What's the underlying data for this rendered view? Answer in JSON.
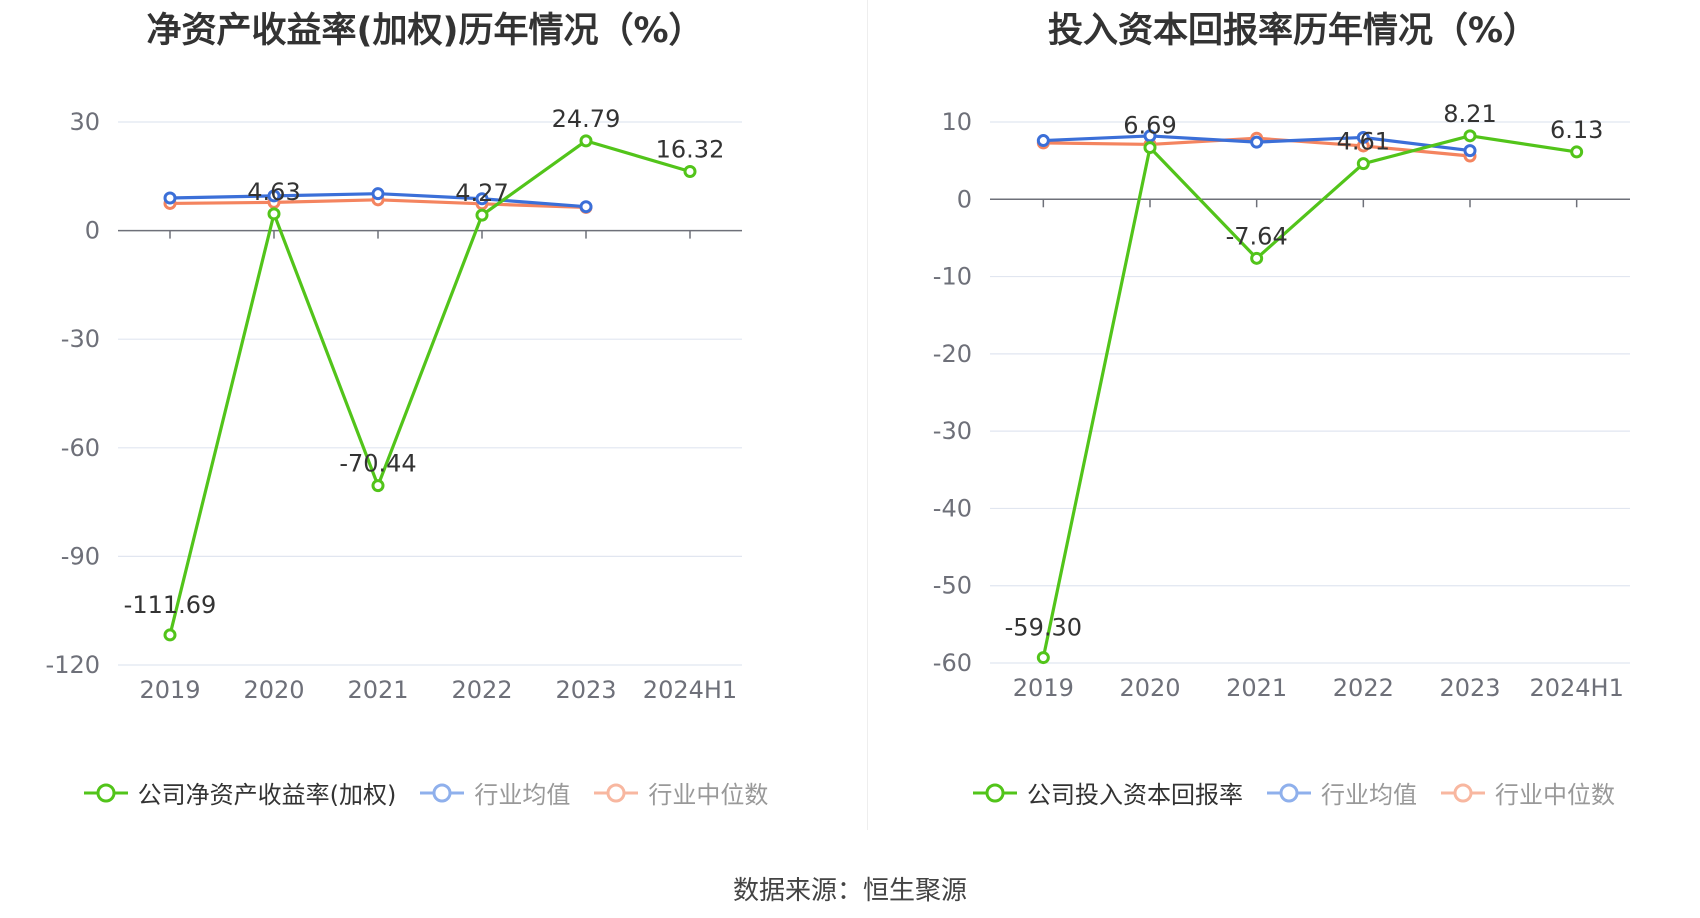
{
  "source_text": "数据来源：恒生聚源",
  "colors": {
    "company": "#52c41a",
    "industry_avg": "#3b6fd8",
    "industry_median": "#f4845f",
    "grid": "#e1e6f0",
    "axis": "#6e7079",
    "tick_label": "#6e7079"
  },
  "chart_data": [
    {
      "type": "line",
      "title": "净资产收益率(加权)历年情况（%）",
      "categories": [
        "2019",
        "2020",
        "2021",
        "2022",
        "2023",
        "2024H1"
      ],
      "ylim": [
        -120,
        30
      ],
      "yticks": [
        30,
        0,
        -30,
        -60,
        -90,
        -120
      ],
      "grid": true,
      "legend_position": "bottom",
      "series": [
        {
          "name": "公司净资产收益率(加权)",
          "color_key": "company",
          "values": [
            -111.69,
            4.63,
            -70.44,
            4.27,
            24.79,
            16.32
          ],
          "labels": [
            "-111.69",
            "4.63",
            "-70.44",
            "4.27",
            "24.79",
            "16.32"
          ]
        },
        {
          "name": "行业均值",
          "color_key": "industry_avg",
          "values": [
            9.0,
            9.6,
            10.2,
            8.8,
            6.6,
            null
          ]
        },
        {
          "name": "行业中位数",
          "color_key": "industry_median",
          "values": [
            7.5,
            7.8,
            8.5,
            7.4,
            6.4,
            null
          ]
        }
      ]
    },
    {
      "type": "line",
      "title": "投入资本回报率历年情况（%）",
      "categories": [
        "2019",
        "2020",
        "2021",
        "2022",
        "2023",
        "2024H1"
      ],
      "ylim": [
        -60,
        10
      ],
      "yticks": [
        10,
        0,
        -10,
        -20,
        -30,
        -40,
        -50,
        -60
      ],
      "grid": true,
      "legend_position": "bottom",
      "series": [
        {
          "name": "公司投入资本回报率",
          "color_key": "company",
          "values": [
            -59.3,
            6.69,
            -7.64,
            4.61,
            8.21,
            6.13
          ],
          "labels": [
            "-59.30",
            "6.69",
            "-7.64",
            "4.61",
            "8.21",
            "6.13"
          ]
        },
        {
          "name": "行业均值",
          "color_key": "industry_avg",
          "values": [
            7.6,
            8.2,
            7.4,
            8.0,
            6.3,
            null
          ]
        },
        {
          "name": "行业中位数",
          "color_key": "industry_median",
          "values": [
            7.3,
            7.1,
            7.9,
            6.9,
            5.6,
            null
          ]
        }
      ]
    }
  ]
}
